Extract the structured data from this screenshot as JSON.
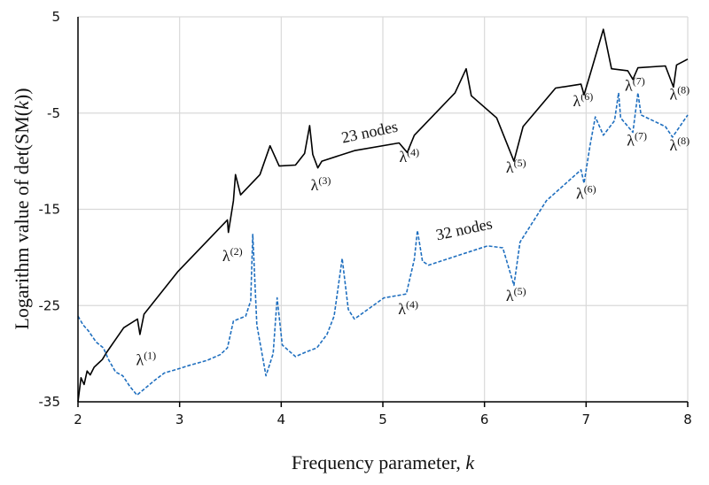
{
  "chart_data": {
    "type": "line",
    "xlabel": {
      "text": "Frequency parameter, ",
      "italic": "k"
    },
    "ylabel": {
      "text": "Logarithm value of  det(SM(",
      "italic": "k",
      "suffix": "))"
    },
    "xlim": [
      2,
      8
    ],
    "ylim": [
      -35,
      5
    ],
    "xticks": [
      2,
      3,
      4,
      5,
      6,
      7,
      8
    ],
    "yticks": [
      5,
      -5,
      -15,
      -25,
      -35
    ],
    "grid": true,
    "series": [
      {
        "name": "23 nodes",
        "color": "#000000",
        "style": "solid",
        "x": [
          2.0,
          2.03,
          2.06,
          2.09,
          2.12,
          2.16,
          2.2,
          2.24,
          2.28,
          2.45,
          2.585,
          2.61,
          2.65,
          2.98,
          3.47,
          3.48,
          3.53,
          3.55,
          3.6,
          3.79,
          3.89,
          3.98,
          4.14,
          4.23,
          4.28,
          4.31,
          4.36,
          4.4,
          4.72,
          5.16,
          5.24,
          5.31,
          5.71,
          5.82,
          5.87,
          6.12,
          6.29,
          6.38,
          6.7,
          6.95,
          6.98,
          7.05,
          7.17,
          7.25,
          7.41,
          7.46,
          7.51,
          7.78,
          7.86,
          7.89,
          8.0
        ],
        "y": [
          -35,
          -32.5,
          -33.2,
          -31.8,
          -32.2,
          -31.4,
          -31.0,
          -30.6,
          -29.9,
          -27.3,
          -26.4,
          -28.0,
          -25.9,
          -21.5,
          -16.1,
          -17.4,
          -14.1,
          -11.4,
          -13.5,
          -11.4,
          -8.4,
          -10.5,
          -10.4,
          -9.2,
          -6.3,
          -9.3,
          -10.7,
          -10.0,
          -8.9,
          -8.1,
          -9.1,
          -7.3,
          -2.9,
          -0.4,
          -3.2,
          -5.5,
          -10.0,
          -6.4,
          -2.4,
          -2.0,
          -3.1,
          -0.6,
          3.7,
          -0.4,
          -0.6,
          -1.5,
          -0.3,
          -0.1,
          -2.3,
          0.0,
          0.6
        ]
      },
      {
        "name": "32 nodes",
        "color": "#1f6fbf",
        "style": "dashed",
        "x": [
          2.0,
          2.05,
          2.1,
          2.18,
          2.25,
          2.3,
          2.37,
          2.44,
          2.51,
          2.58,
          2.66,
          2.75,
          2.85,
          2.98,
          3.1,
          3.27,
          3.4,
          3.47,
          3.53,
          3.65,
          3.7,
          3.72,
          3.76,
          3.85,
          3.92,
          3.96,
          4.01,
          4.14,
          4.25,
          4.35,
          4.45,
          4.52,
          4.6,
          4.66,
          4.72,
          5.01,
          5.23,
          5.31,
          5.34,
          5.39,
          5.45,
          6.03,
          6.18,
          6.29,
          6.35,
          6.61,
          6.95,
          6.98,
          7.04,
          7.09,
          7.17,
          7.28,
          7.32,
          7.34,
          7.46,
          7.51,
          7.54,
          7.78,
          7.85,
          8.0
        ],
        "y": [
          -26.1,
          -27.0,
          -27.6,
          -28.8,
          -29.4,
          -30.6,
          -31.9,
          -32.3,
          -33.4,
          -34.3,
          -33.6,
          -32.8,
          -32.0,
          -31.6,
          -31.2,
          -30.7,
          -30.1,
          -29.4,
          -26.6,
          -26.1,
          -24.5,
          -17.6,
          -27.0,
          -32.3,
          -30.0,
          -24.2,
          -29.1,
          -30.3,
          -29.8,
          -29.4,
          -28.0,
          -26.1,
          -20.1,
          -25.4,
          -26.4,
          -24.2,
          -23.8,
          -20.2,
          -17.2,
          -20.4,
          -20.8,
          -18.8,
          -19.0,
          -22.9,
          -18.4,
          -14.1,
          -10.9,
          -12.3,
          -8.3,
          -5.4,
          -7.3,
          -5.8,
          -2.9,
          -5.5,
          -7.0,
          -2.9,
          -5.2,
          -6.4,
          -7.5,
          -5.2
        ]
      }
    ],
    "annotations": [
      {
        "text": "λ",
        "sup": "(1)",
        "x": 2.67,
        "y": -31.2
      },
      {
        "text": "λ",
        "sup": "(2)",
        "x": 3.52,
        "y": -20.4
      },
      {
        "text": "λ",
        "sup": "(3)",
        "x": 4.39,
        "y": -13.0
      },
      {
        "text": "λ",
        "sup": "(4)",
        "x": 5.26,
        "y": -10.1
      },
      {
        "text": "λ",
        "sup": "(5)",
        "x": 6.31,
        "y": -11.2
      },
      {
        "text": "λ",
        "sup": "(6)",
        "x": 6.97,
        "y": -4.3
      },
      {
        "text": "λ",
        "sup": "(7)",
        "x": 7.48,
        "y": -2.7
      },
      {
        "text": "λ",
        "sup": "(8)",
        "x": 7.92,
        "y": -3.6
      },
      {
        "text": "λ",
        "sup": "(4)",
        "x": 5.25,
        "y": -25.9
      },
      {
        "text": "λ",
        "sup": "(5)",
        "x": 6.31,
        "y": -24.5
      },
      {
        "text": "λ",
        "sup": "(6)",
        "x": 7.0,
        "y": -13.9
      },
      {
        "text": "λ",
        "sup": "(7)",
        "x": 7.5,
        "y": -8.4
      },
      {
        "text": "λ",
        "sup": "(8)",
        "x": 7.92,
        "y": -8.9
      },
      {
        "text": "23 nodes",
        "sup": "",
        "x": 4.88,
        "y": -7.5,
        "rotate": -12
      },
      {
        "text": "32 nodes",
        "sup": "",
        "x": 5.81,
        "y": -17.6,
        "rotate": -12
      }
    ]
  }
}
